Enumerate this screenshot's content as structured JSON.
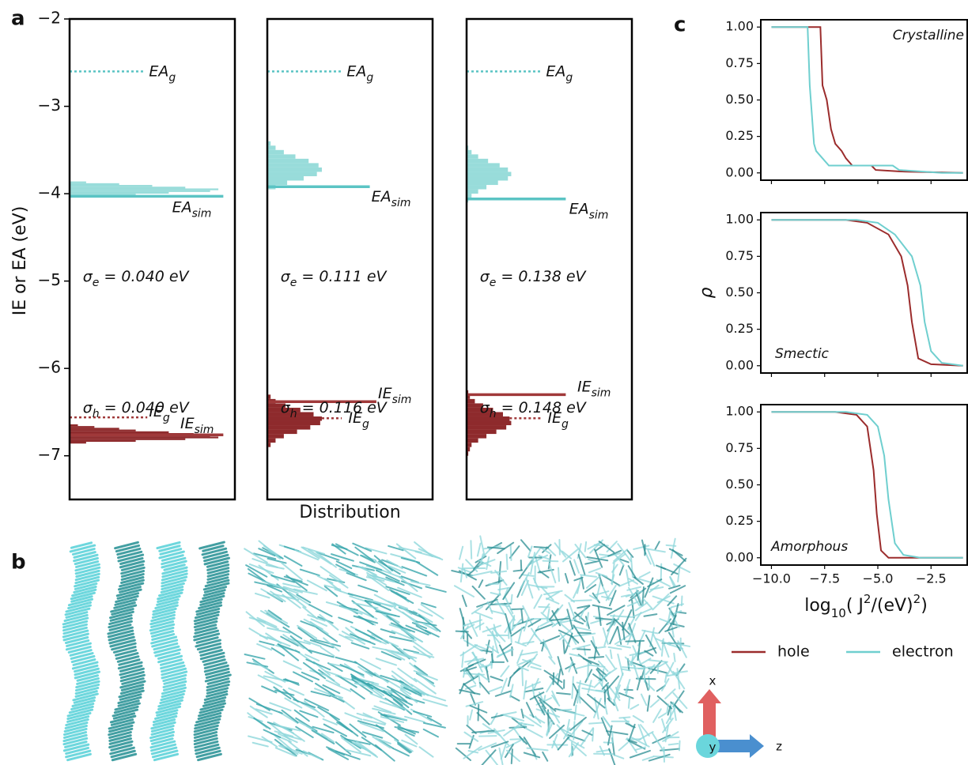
{
  "figure": {
    "panel_labels": [
      "a",
      "b",
      "c"
    ],
    "axis_triad": [
      "x",
      "y",
      "z"
    ]
  },
  "chart_data": [
    {
      "type": "histogram",
      "ylim": [
        -7.5,
        -2
      ],
      "xlim": [
        0,
        1
      ],
      "ylabel": "IE or EA (eV)",
      "yticks": [
        {
          "value": -2,
          "label": "−2"
        },
        {
          "value": -3,
          "label": "−3"
        },
        {
          "value": -4,
          "label": "−4"
        },
        {
          "value": -5,
          "label": "−5"
        },
        {
          "value": -6,
          "label": "−6"
        },
        {
          "value": -7,
          "label": "−7"
        }
      ],
      "electron": {
        "color": "#98dcda",
        "bins": [
          -4.04,
          -4.02,
          -4.0,
          -3.98,
          -3.96,
          -3.94,
          -3.92,
          -3.9,
          -3.88,
          -3.86
        ],
        "counts": [
          0.15,
          0.4,
          0.6,
          0.85,
          0.9,
          0.7,
          0.5,
          0.3,
          0.1
        ]
      },
      "hole": {
        "color": "#8e2a2c",
        "bins": [
          -6.86,
          -6.84,
          -6.82,
          -6.8,
          -6.78,
          -6.76,
          -6.74,
          -6.72,
          -6.7,
          -6.68,
          -6.66,
          -6.64
        ],
        "counts": [
          0.1,
          0.4,
          0.7,
          0.9,
          0.85,
          0.75,
          0.6,
          0.4,
          0.3,
          0.15,
          0.05
        ]
      },
      "levels": [
        {
          "label": [
            "EA",
            "g"
          ],
          "value": -2.6,
          "style": "dotted",
          "color": "#5bc4c4"
        },
        {
          "label": [
            "EA",
            "sim"
          ],
          "value": -4.03,
          "style": "solid",
          "color": "#5bc4c4"
        },
        {
          "label": [
            "IE",
            "g"
          ],
          "value": -6.56,
          "style": "dotted",
          "color": "#a0393a"
        },
        {
          "label": [
            "IE",
            "sim"
          ],
          "value": -6.76,
          "style": "solid",
          "color": "#a0393a"
        }
      ],
      "sigma_labels": [
        [
          "σ",
          "e",
          " = 0.040 eV"
        ],
        [
          "σ",
          "h",
          " = 0.040 eV"
        ]
      ]
    },
    {
      "type": "histogram",
      "ylim": [
        -7.5,
        -2
      ],
      "xlim": [
        0,
        1
      ],
      "xlabel": "Distribution",
      "electron": {
        "color": "#98dcda",
        "bins": [
          -3.95,
          -3.9,
          -3.85,
          -3.8,
          -3.75,
          -3.7,
          -3.65,
          -3.6,
          -3.55,
          -3.5,
          -3.45,
          -3.4
        ],
        "counts": [
          0.05,
          0.12,
          0.22,
          0.3,
          0.33,
          0.31,
          0.25,
          0.17,
          0.1,
          0.05,
          0.02
        ]
      },
      "hole": {
        "color": "#8e2a2c",
        "bins": [
          -6.9,
          -6.85,
          -6.8,
          -6.75,
          -6.7,
          -6.65,
          -6.6,
          -6.55,
          -6.5,
          -6.45,
          -6.4,
          -6.35,
          -6.3
        ],
        "counts": [
          0.02,
          0.05,
          0.1,
          0.18,
          0.26,
          0.32,
          0.33,
          0.28,
          0.2,
          0.11,
          0.05,
          0.02
        ]
      },
      "levels": [
        {
          "label": [
            "EA",
            "g"
          ],
          "value": -2.6,
          "style": "dotted",
          "color": "#5bc4c4"
        },
        {
          "label": [
            "EA",
            "sim"
          ],
          "value": -3.92,
          "style": "solid",
          "color": "#5bc4c4"
        },
        {
          "label": [
            "IE",
            "g"
          ],
          "value": -6.57,
          "style": "dotted",
          "color": "#a0393a"
        },
        {
          "label": [
            "IE",
            "sim"
          ],
          "value": -6.38,
          "style": "solid",
          "color": "#a0393a"
        }
      ],
      "sigma_labels": [
        [
          "σ",
          "e",
          " = 0.111 eV"
        ],
        [
          "σ",
          "h",
          " = 0.116 eV"
        ]
      ]
    },
    {
      "type": "histogram",
      "ylim": [
        -7.5,
        -2
      ],
      "xlim": [
        0,
        1
      ],
      "electron": {
        "color": "#98dcda",
        "bins": [
          -4.1,
          -4.05,
          -4.0,
          -3.95,
          -3.9,
          -3.85,
          -3.8,
          -3.75,
          -3.7,
          -3.65,
          -3.6,
          -3.55,
          -3.5,
          -3.45
        ],
        "counts": [
          0.01,
          0.03,
          0.07,
          0.12,
          0.19,
          0.25,
          0.27,
          0.25,
          0.2,
          0.13,
          0.07,
          0.03,
          0.01
        ]
      },
      "hole": {
        "color": "#8e2a2c",
        "bins": [
          -7.0,
          -6.95,
          -6.9,
          -6.85,
          -6.8,
          -6.75,
          -6.7,
          -6.65,
          -6.6,
          -6.55,
          -6.5,
          -6.45,
          -6.4,
          -6.35,
          -6.3,
          -6.25
        ],
        "counts": [
          0.01,
          0.02,
          0.03,
          0.07,
          0.12,
          0.18,
          0.24,
          0.27,
          0.26,
          0.22,
          0.16,
          0.1,
          0.05,
          0.02,
          0.01
        ]
      },
      "levels": [
        {
          "label": [
            "EA",
            "g"
          ],
          "value": -2.6,
          "style": "dotted",
          "color": "#5bc4c4"
        },
        {
          "label": [
            "EA",
            "sim"
          ],
          "value": -4.06,
          "style": "solid",
          "color": "#5bc4c4"
        },
        {
          "label": [
            "IE",
            "g"
          ],
          "value": -6.57,
          "style": "dotted",
          "color": "#a0393a"
        },
        {
          "label": [
            "IE",
            "sim"
          ],
          "value": -6.3,
          "style": "solid",
          "color": "#a0393a"
        }
      ],
      "sigma_labels": [
        [
          "σ",
          "e",
          " = 0.138 eV"
        ],
        [
          "σ",
          "h",
          " = 0.148 eV"
        ]
      ]
    },
    {
      "type": "line",
      "annotation": "Crystalline",
      "legend": true,
      "xlim": [
        -10.5,
        -0.8
      ],
      "ylim": [
        -0.05,
        1.05
      ],
      "xticks": [
        -10,
        -7.5,
        -5,
        -2.5
      ],
      "yticks": [
        {
          "value": 0,
          "label": "0.00"
        },
        {
          "value": 0.25,
          "label": "0.25"
        },
        {
          "value": 0.5,
          "label": "0.50"
        },
        {
          "value": 0.75,
          "label": "0.75"
        },
        {
          "value": 1,
          "label": "1.00"
        }
      ],
      "series": [
        {
          "name": "hole",
          "color": "#9b2c2c",
          "x": [
            -10,
            -7.7,
            -7.6,
            -7.4,
            -7.2,
            -7.0,
            -6.7,
            -6.5,
            -6.2,
            -5.3,
            -5.1,
            -4.0,
            -1.0
          ],
          "values": [
            1,
            1,
            0.6,
            0.5,
            0.3,
            0.2,
            0.15,
            0.1,
            0.05,
            0.05,
            0.02,
            0.01,
            0
          ]
        },
        {
          "name": "electron",
          "color": "#6fcfcf",
          "x": [
            -10,
            -8.3,
            -8.2,
            -8.0,
            -7.9,
            -7.6,
            -7.3,
            -4.3,
            -4.0,
            -2.0,
            -1.0
          ],
          "values": [
            1,
            1,
            0.6,
            0.2,
            0.15,
            0.1,
            0.05,
            0.05,
            0.02,
            0,
            0
          ]
        }
      ]
    },
    {
      "type": "line",
      "annotation": "Smectic",
      "ylabel": "ρ",
      "xlim": [
        -10.5,
        -0.8
      ],
      "ylim": [
        -0.05,
        1.05
      ],
      "xticks": [
        -10,
        -7.5,
        -5,
        -2.5
      ],
      "yticks": [
        {
          "value": 0,
          "label": "0.00"
        },
        {
          "value": 0.25,
          "label": "0.25"
        },
        {
          "value": 0.5,
          "label": "0.50"
        },
        {
          "value": 0.75,
          "label": "0.75"
        },
        {
          "value": 1,
          "label": "1.00"
        }
      ],
      "series": [
        {
          "name": "hole",
          "color": "#9b2c2c",
          "x": [
            -10,
            -6.5,
            -5.5,
            -4.5,
            -3.9,
            -3.6,
            -3.4,
            -3.1,
            -2.5,
            -1.0
          ],
          "values": [
            1,
            1,
            0.98,
            0.9,
            0.75,
            0.55,
            0.3,
            0.05,
            0.01,
            0
          ]
        },
        {
          "name": "electron",
          "color": "#6fcfcf",
          "x": [
            -10,
            -6,
            -5,
            -4.2,
            -3.4,
            -3.0,
            -2.8,
            -2.5,
            -2.0,
            -1.0
          ],
          "values": [
            1,
            1,
            0.98,
            0.9,
            0.75,
            0.55,
            0.3,
            0.1,
            0.02,
            0
          ]
        }
      ]
    },
    {
      "type": "line",
      "annotation": "Amorphous",
      "xlabel": [
        "log",
        "10",
        "( J",
        "2",
        "/(eV)",
        "2",
        ")"
      ],
      "xlim": [
        -10.5,
        -0.8
      ],
      "ylim": [
        -0.05,
        1.05
      ],
      "xticks": [
        {
          "value": -10,
          "label": "−10.0"
        },
        {
          "value": -7.5,
          "label": "−7.5"
        },
        {
          "value": -5,
          "label": "−5.0"
        },
        {
          "value": -2.5,
          "label": "−2.5"
        }
      ],
      "yticks": [
        {
          "value": 0,
          "label": "0.00"
        },
        {
          "value": 0.25,
          "label": "0.25"
        },
        {
          "value": 0.5,
          "label": "0.50"
        },
        {
          "value": 0.75,
          "label": "0.75"
        },
        {
          "value": 1,
          "label": "1.00"
        }
      ],
      "series": [
        {
          "name": "hole",
          "color": "#9b2c2c",
          "x": [
            -10,
            -7,
            -6,
            -5.5,
            -5.2,
            -5.05,
            -4.85,
            -4.5,
            -1.0
          ],
          "values": [
            1,
            1,
            0.98,
            0.9,
            0.6,
            0.3,
            0.05,
            0,
            0
          ]
        },
        {
          "name": "electron",
          "color": "#6fcfcf",
          "x": [
            -10,
            -6.5,
            -5.5,
            -5.0,
            -4.7,
            -4.5,
            -4.2,
            -3.8,
            -3.0,
            -1.0
          ],
          "values": [
            1,
            1,
            0.98,
            0.9,
            0.7,
            0.4,
            0.1,
            0.02,
            0,
            0
          ]
        }
      ]
    }
  ]
}
